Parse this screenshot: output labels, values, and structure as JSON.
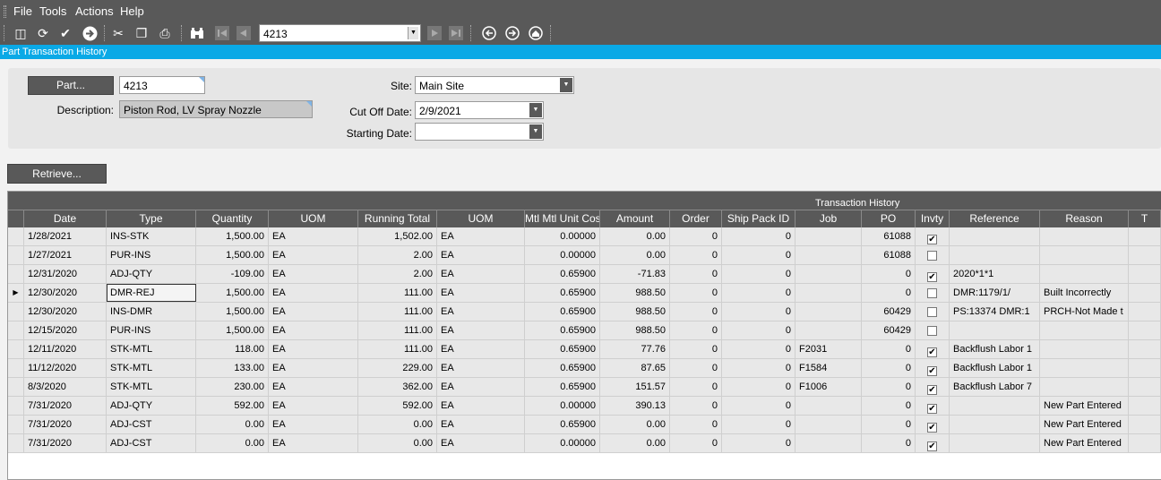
{
  "menu": [
    "File",
    "Tools",
    "Actions",
    "Help"
  ],
  "toolbar": {
    "icons": [
      "clipboard-icon",
      "refresh-icon",
      "clear-icon",
      "next-arrow-icon",
      "cut-icon",
      "copy-icon",
      "paste-icon",
      "binoculars-icon",
      "first-record-icon",
      "previous-record-icon",
      "next-record-icon",
      "last-record-icon",
      "back-icon",
      "forward-icon",
      "home-icon"
    ],
    "record_value": "4213"
  },
  "title": "Part Transaction History",
  "form": {
    "part_button": "Part...",
    "part_value": "4213",
    "description_label": "Description:",
    "description_value": "Piston Rod, LV Spray Nozzle",
    "site_label": "Site:",
    "site_value": "Main Site",
    "cutoff_label": "Cut Off Date:",
    "cutoff_value": "2/9/2021",
    "starting_label": "Starting Date:",
    "starting_value": ""
  },
  "retrieve_button": "Retrieve...",
  "grid": {
    "band_title": "Transaction History",
    "columns": [
      "Date",
      "Type",
      "Quantity",
      "UOM",
      "Running Total",
      "UOM",
      "Mtl Mtl Unit Cost",
      "Amount",
      "Order",
      "Ship Pack ID",
      "Job",
      "PO",
      "Invty",
      "Reference",
      "Reason",
      "T"
    ],
    "rows": [
      {
        "date": "1/28/2021",
        "type": "INS-STK",
        "qty": "1,500.00",
        "uom": "EA",
        "running": "1,502.00",
        "uom2": "EA",
        "cost": "0.00000",
        "amount": "0.00",
        "order": "0",
        "ship": "0",
        "job": "",
        "po": "61088",
        "invty": true,
        "reference": "",
        "reason": ""
      },
      {
        "date": "1/27/2021",
        "type": "PUR-INS",
        "qty": "1,500.00",
        "uom": "EA",
        "running": "2.00",
        "uom2": "EA",
        "cost": "0.00000",
        "amount": "0.00",
        "order": "0",
        "ship": "0",
        "job": "",
        "po": "61088",
        "invty": false,
        "reference": "",
        "reason": ""
      },
      {
        "date": "12/31/2020",
        "type": "ADJ-QTY",
        "qty": "-109.00",
        "uom": "EA",
        "running": "2.00",
        "uom2": "EA",
        "cost": "0.65900",
        "amount": "-71.83",
        "order": "0",
        "ship": "0",
        "job": "",
        "po": "0",
        "invty": true,
        "reference": "2020*1*1",
        "reason": ""
      },
      {
        "date": "12/30/2020",
        "type": "DMR-REJ",
        "qty": "1,500.00",
        "uom": "EA",
        "running": "111.00",
        "uom2": "EA",
        "cost": "0.65900",
        "amount": "988.50",
        "order": "0",
        "ship": "0",
        "job": "",
        "po": "0",
        "invty": false,
        "reference": "DMR:1179/1/",
        "reason": "Built Incorrectly"
      },
      {
        "date": "12/30/2020",
        "type": "INS-DMR",
        "qty": "1,500.00",
        "uom": "EA",
        "running": "111.00",
        "uom2": "EA",
        "cost": "0.65900",
        "amount": "988.50",
        "order": "0",
        "ship": "0",
        "job": "",
        "po": "60429",
        "invty": false,
        "reference": "PS:13374 DMR:1",
        "reason": "PRCH-Not Made t"
      },
      {
        "date": "12/15/2020",
        "type": "PUR-INS",
        "qty": "1,500.00",
        "uom": "EA",
        "running": "111.00",
        "uom2": "EA",
        "cost": "0.65900",
        "amount": "988.50",
        "order": "0",
        "ship": "0",
        "job": "",
        "po": "60429",
        "invty": false,
        "reference": "",
        "reason": ""
      },
      {
        "date": "12/11/2020",
        "type": "STK-MTL",
        "qty": "118.00",
        "uom": "EA",
        "running": "111.00",
        "uom2": "EA",
        "cost": "0.65900",
        "amount": "77.76",
        "order": "0",
        "ship": "0",
        "job": "F2031",
        "po": "0",
        "invty": true,
        "reference": "Backflush Labor 1",
        "reason": ""
      },
      {
        "date": "11/12/2020",
        "type": "STK-MTL",
        "qty": "133.00",
        "uom": "EA",
        "running": "229.00",
        "uom2": "EA",
        "cost": "0.65900",
        "amount": "87.65",
        "order": "0",
        "ship": "0",
        "job": "F1584",
        "po": "0",
        "invty": true,
        "reference": "Backflush Labor 1",
        "reason": ""
      },
      {
        "date": "8/3/2020",
        "type": "STK-MTL",
        "qty": "230.00",
        "uom": "EA",
        "running": "362.00",
        "uom2": "EA",
        "cost": "0.65900",
        "amount": "151.57",
        "order": "0",
        "ship": "0",
        "job": "F1006",
        "po": "0",
        "invty": true,
        "reference": "Backflush Labor 7",
        "reason": ""
      },
      {
        "date": "7/31/2020",
        "type": "ADJ-QTY",
        "qty": "592.00",
        "uom": "EA",
        "running": "592.00",
        "uom2": "EA",
        "cost": "0.00000",
        "amount": "390.13",
        "order": "0",
        "ship": "0",
        "job": "",
        "po": "0",
        "invty": true,
        "reference": "",
        "reason": "New Part Entered"
      },
      {
        "date": "7/31/2020",
        "type": "ADJ-CST",
        "qty": "0.00",
        "uom": "EA",
        "running": "0.00",
        "uom2": "EA",
        "cost": "0.65900",
        "amount": "0.00",
        "order": "0",
        "ship": "0",
        "job": "",
        "po": "0",
        "invty": true,
        "reference": "",
        "reason": "New Part Entered"
      },
      {
        "date": "7/31/2020",
        "type": "ADJ-CST",
        "qty": "0.00",
        "uom": "EA",
        "running": "0.00",
        "uom2": "EA",
        "cost": "0.00000",
        "amount": "0.00",
        "order": "0",
        "ship": "0",
        "job": "",
        "po": "0",
        "invty": true,
        "reference": "",
        "reason": "New Part Entered"
      }
    ],
    "current_row_index": 3,
    "current_cell": "type"
  }
}
